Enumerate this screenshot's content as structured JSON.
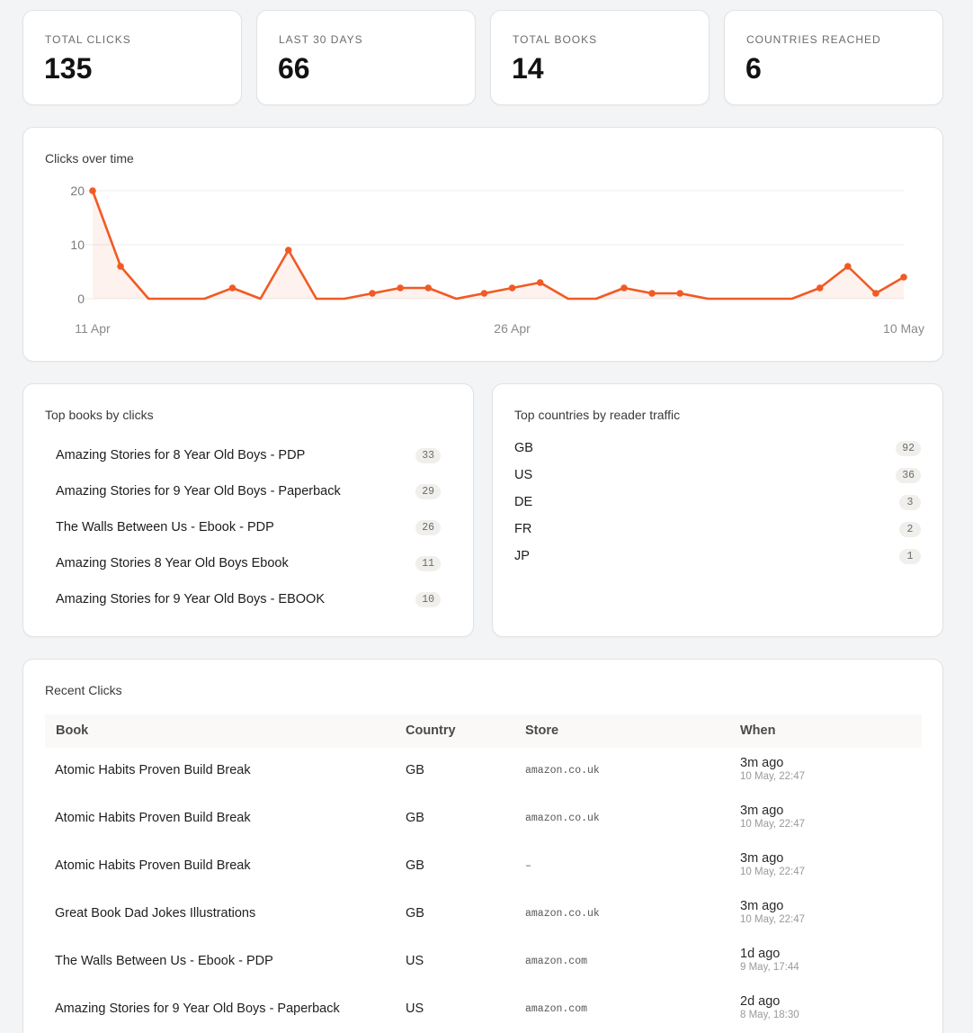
{
  "stats": [
    {
      "label": "TOTAL CLICKS",
      "value": "135"
    },
    {
      "label": "LAST 30 DAYS",
      "value": "66"
    },
    {
      "label": "TOTAL BOOKS",
      "value": "14"
    },
    {
      "label": "COUNTRIES REACHED",
      "value": "6"
    }
  ],
  "chart": {
    "title": "Clicks over time",
    "color": "#f15a24"
  },
  "chart_data": {
    "type": "area",
    "x_tick_labels": [
      "11 Apr",
      "26 Apr",
      "10 May"
    ],
    "y_tick_labels": [
      "0",
      "10",
      "20"
    ],
    "ylim": [
      0,
      20
    ],
    "grid": true,
    "series": [
      {
        "values": [
          20,
          6,
          0,
          0,
          0,
          2,
          0,
          9,
          0,
          0,
          1,
          2,
          2,
          0,
          1,
          2,
          3,
          0,
          0,
          2,
          1,
          1,
          0,
          0,
          0,
          0,
          2,
          6,
          1,
          4
        ]
      }
    ]
  },
  "top_books": {
    "title": "Top books by clicks",
    "items": [
      {
        "label": "Amazing Stories for 8 Year Old Boys - PDP",
        "count": "33"
      },
      {
        "label": "Amazing Stories for 9 Year Old Boys - Paperback",
        "count": "29"
      },
      {
        "label": "The Walls Between Us - Ebook - PDP",
        "count": "26"
      },
      {
        "label": "Amazing Stories 8 Year Old Boys Ebook",
        "count": "11"
      },
      {
        "label": "Amazing Stories for 9 Year Old Boys - EBOOK",
        "count": "10"
      }
    ]
  },
  "top_countries": {
    "title": "Top countries by reader traffic",
    "items": [
      {
        "label": "GB",
        "count": "92"
      },
      {
        "label": "US",
        "count": "36"
      },
      {
        "label": "DE",
        "count": "3"
      },
      {
        "label": "FR",
        "count": "2"
      },
      {
        "label": "JP",
        "count": "1"
      }
    ]
  },
  "recent": {
    "title": "Recent Clicks",
    "headers": {
      "book": "Book",
      "country": "Country",
      "store": "Store",
      "when": "When"
    },
    "rows": [
      {
        "book": "Atomic Habits Proven Build Break",
        "country": "GB",
        "store": "amazon.co.uk",
        "when": "3m ago",
        "when_detail": "10 May, 22:47"
      },
      {
        "book": "Atomic Habits Proven Build Break",
        "country": "GB",
        "store": "amazon.co.uk",
        "when": "3m ago",
        "when_detail": "10 May, 22:47"
      },
      {
        "book": "Atomic Habits Proven Build Break",
        "country": "GB",
        "store": "–",
        "when": "3m ago",
        "when_detail": "10 May, 22:47"
      },
      {
        "book": "Great Book Dad Jokes Illustrations",
        "country": "GB",
        "store": "amazon.co.uk",
        "when": "3m ago",
        "when_detail": "10 May, 22:47"
      },
      {
        "book": "The Walls Between Us - Ebook - PDP",
        "country": "US",
        "store": "amazon.com",
        "when": "1d ago",
        "when_detail": "9 May, 17:44"
      },
      {
        "book": "Amazing Stories for 9 Year Old Boys - Paperback",
        "country": "US",
        "store": "amazon.com",
        "when": "2d ago",
        "when_detail": "8 May, 18:30"
      }
    ]
  }
}
